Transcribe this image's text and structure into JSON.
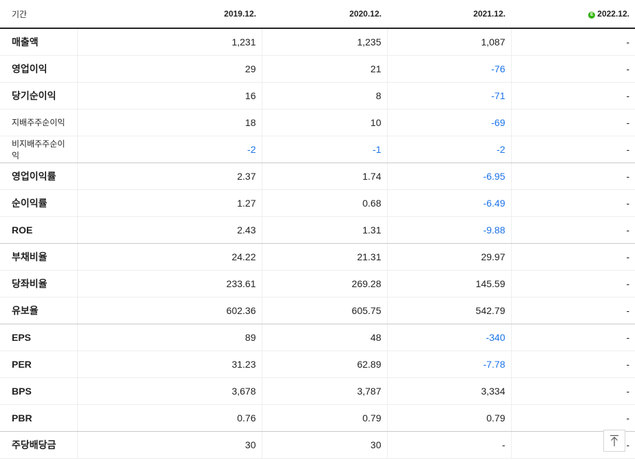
{
  "header": {
    "label": "기간",
    "periods": [
      "2019.12.",
      "2020.12.",
      "2021.12.",
      "2022.12."
    ],
    "estimate_badge": "E"
  },
  "rows": [
    {
      "label": "매출액",
      "values": [
        "1,231",
        "1,235",
        "1,087",
        "-"
      ]
    },
    {
      "label": "영업이익",
      "values": [
        "29",
        "21",
        "-76",
        "-"
      ]
    },
    {
      "label": "당기순이익",
      "values": [
        "16",
        "8",
        "-71",
        "-"
      ]
    },
    {
      "label": "지배주주순이익",
      "values": [
        "18",
        "10",
        "-69",
        "-"
      ]
    },
    {
      "label": "비지배주주순이익",
      "values": [
        "-2",
        "-1",
        "-2",
        "-"
      ]
    },
    {
      "label": "영업이익률",
      "values": [
        "2.37",
        "1.74",
        "-6.95",
        "-"
      ]
    },
    {
      "label": "순이익률",
      "values": [
        "1.27",
        "0.68",
        "-6.49",
        "-"
      ]
    },
    {
      "label": "ROE",
      "values": [
        "2.43",
        "1.31",
        "-9.88",
        "-"
      ]
    },
    {
      "label": "부채비율",
      "values": [
        "24.22",
        "21.31",
        "29.97",
        "-"
      ]
    },
    {
      "label": "당좌비율",
      "values": [
        "233.61",
        "269.28",
        "145.59",
        "-"
      ]
    },
    {
      "label": "유보율",
      "values": [
        "602.36",
        "605.75",
        "542.79",
        "-"
      ]
    },
    {
      "label": "EPS",
      "values": [
        "89",
        "48",
        "-340",
        "-"
      ]
    },
    {
      "label": "PER",
      "values": [
        "31.23",
        "62.89",
        "-7.78",
        "-"
      ]
    },
    {
      "label": "BPS",
      "values": [
        "3,678",
        "3,787",
        "3,334",
        "-"
      ]
    },
    {
      "label": "PBR",
      "values": [
        "0.76",
        "0.79",
        "0.79",
        "-"
      ]
    },
    {
      "label": "주당배당금",
      "values": [
        "30",
        "30",
        "-",
        "-"
      ]
    }
  ],
  "colors": {
    "negative": "#1a73e8",
    "estimate_badge": "#2db400"
  },
  "icons": {
    "scroll_top": "arrow-up-to-top-icon"
  }
}
